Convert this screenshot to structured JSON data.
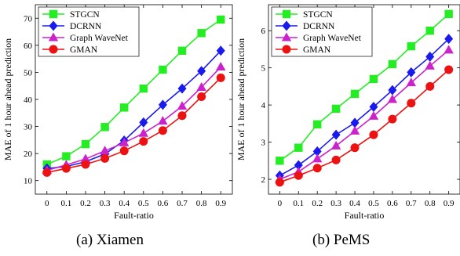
{
  "chart_data": [
    {
      "type": "line",
      "caption": "(a) Xiamen",
      "xlabel": "Fault-ratio",
      "ylabel": "MAE of 1 hour ahead prediction",
      "x": [
        0,
        0.1,
        0.2,
        0.3,
        0.4,
        0.5,
        0.6,
        0.7,
        0.8,
        0.9
      ],
      "xticklabels": [
        "0",
        "0.1",
        "0.2",
        "0.3",
        "0.4",
        "0.5",
        "0.6",
        "0.7",
        "0.8",
        "0.9"
      ],
      "xlim": [
        -0.06,
        0.96
      ],
      "ylim": [
        5,
        75
      ],
      "yticks": [
        10,
        20,
        30,
        40,
        50,
        60,
        70
      ],
      "grid": false,
      "legend": "top-left",
      "series": [
        {
          "name": "STGCN",
          "color": "#22ee22",
          "marker": "square",
          "values": [
            16.0,
            19.0,
            23.5,
            29.8,
            37.0,
            44.0,
            51.0,
            58.0,
            64.5,
            69.5
          ]
        },
        {
          "name": "DCRNN",
          "color": "#1a1aee",
          "marker": "diamond",
          "values": [
            14.5,
            15.2,
            17.0,
            19.8,
            24.8,
            31.5,
            38.0,
            44.0,
            50.5,
            58.0
          ]
        },
        {
          "name": "Graph WaveNet",
          "color": "#cc22cc",
          "marker": "triangle",
          "values": [
            13.8,
            15.8,
            18.0,
            21.0,
            24.0,
            27.5,
            32.0,
            37.5,
            44.5,
            52.0
          ]
        },
        {
          "name": "GMAN",
          "color": "#ee1111",
          "marker": "circle",
          "values": [
            13.0,
            14.5,
            16.0,
            18.2,
            21.0,
            24.5,
            28.5,
            34.0,
            41.0,
            48.0
          ]
        }
      ]
    },
    {
      "type": "line",
      "caption": "(b) PeMS",
      "xlabel": "Fault-ratio",
      "ylabel": "MAE of 1 hour ahead prediction",
      "x": [
        0,
        0.1,
        0.2,
        0.3,
        0.4,
        0.5,
        0.6,
        0.7,
        0.8,
        0.9
      ],
      "xticklabels": [
        "0",
        "0.1",
        "0.2",
        "0.3",
        "0.4",
        "0.5",
        "0.6",
        "0.7",
        "0.8",
        "0.9"
      ],
      "xlim": [
        -0.06,
        0.96
      ],
      "ylim": [
        1.6,
        6.7
      ],
      "yticks": [
        2,
        3,
        4,
        5,
        6
      ],
      "grid": false,
      "legend": "top-left",
      "series": [
        {
          "name": "STGCN",
          "color": "#22ee22",
          "marker": "square",
          "values": [
            2.5,
            2.85,
            3.48,
            3.9,
            4.3,
            4.7,
            5.1,
            5.58,
            6.0,
            6.45
          ]
        },
        {
          "name": "DCRNN",
          "color": "#1a1aee",
          "marker": "diamond",
          "values": [
            2.1,
            2.38,
            2.75,
            3.2,
            3.52,
            3.95,
            4.4,
            4.88,
            5.3,
            5.78
          ]
        },
        {
          "name": "Graph WaveNet",
          "color": "#cc22cc",
          "marker": "triangle",
          "values": [
            2.0,
            2.2,
            2.55,
            2.9,
            3.3,
            3.7,
            4.15,
            4.6,
            5.05,
            5.48
          ]
        },
        {
          "name": "GMAN",
          "color": "#ee1111",
          "marker": "circle",
          "values": [
            1.92,
            2.1,
            2.3,
            2.52,
            2.85,
            3.2,
            3.62,
            4.05,
            4.5,
            4.95
          ]
        }
      ]
    }
  ]
}
